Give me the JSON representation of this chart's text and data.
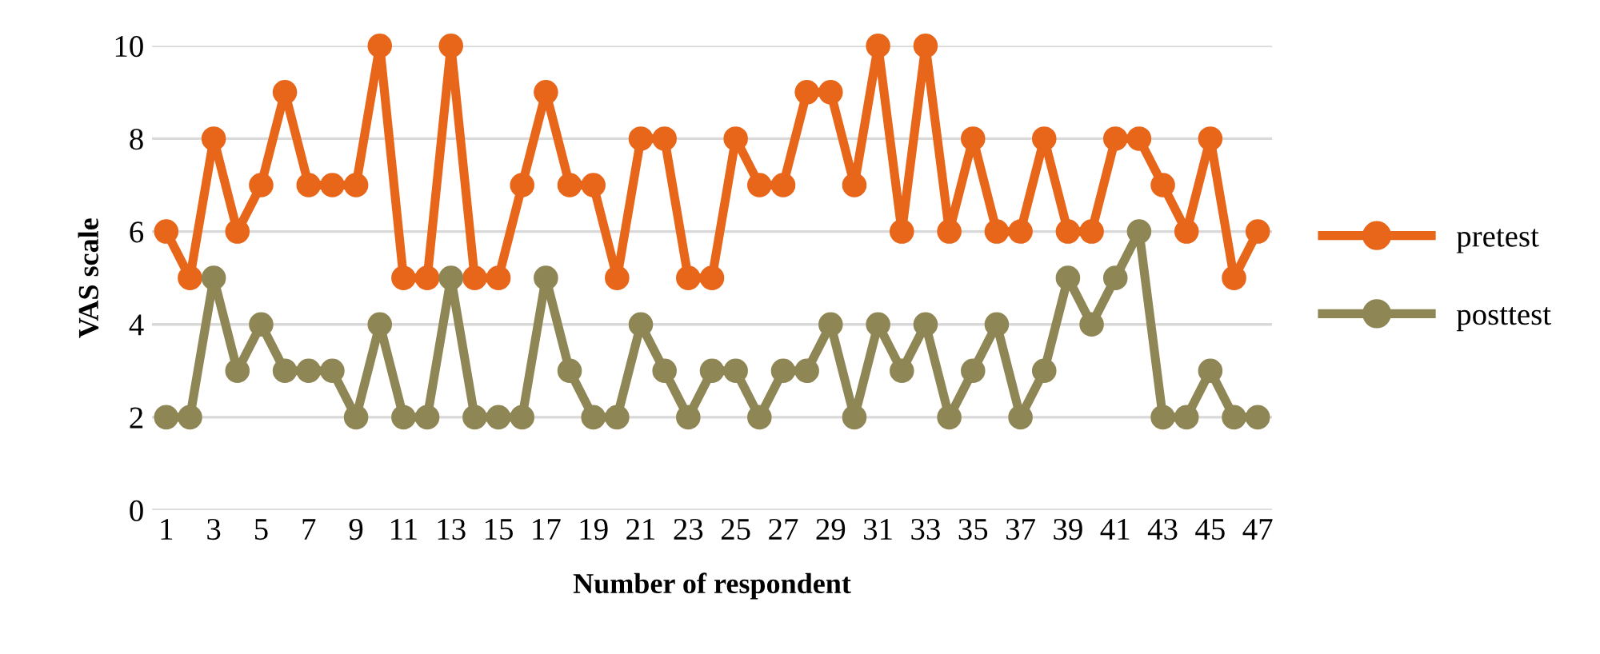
{
  "chart_data": {
    "type": "line",
    "xlabel": "Number of respondent",
    "ylabel": "VAS scale",
    "categories": [
      "1",
      null,
      "3",
      null,
      "5",
      null,
      "7",
      null,
      "9",
      null,
      "11",
      null,
      "13",
      null,
      "15",
      null,
      "17",
      null,
      "19",
      null,
      "21",
      null,
      "23",
      null,
      "25",
      null,
      "27",
      null,
      "29",
      null,
      "31",
      null,
      "33",
      null,
      "35",
      null,
      "37",
      null,
      "39",
      null,
      "41",
      null,
      "43",
      null,
      "45",
      null,
      "47"
    ],
    "series": [
      {
        "name": "pretest",
        "color": "#e8661a",
        "values": [
          6,
          5,
          8,
          6,
          7,
          9,
          7,
          7,
          7,
          10,
          5,
          5,
          10,
          5,
          5,
          7,
          9,
          7,
          7,
          5,
          8,
          8,
          5,
          5,
          8,
          7,
          7,
          9,
          9,
          7,
          10,
          6,
          10,
          6,
          8,
          6,
          6,
          8,
          6,
          6,
          8,
          8,
          7,
          6,
          8,
          5,
          6
        ]
      },
      {
        "name": "posttest",
        "color": "#8f8655",
        "values": [
          2,
          2,
          5,
          3,
          4,
          3,
          3,
          3,
          2,
          4,
          2,
          2,
          5,
          2,
          2,
          2,
          5,
          3,
          2,
          2,
          4,
          3,
          2,
          3,
          3,
          2,
          3,
          3,
          4,
          2,
          4,
          3,
          4,
          2,
          3,
          4,
          2,
          3,
          5,
          4,
          5,
          6,
          2,
          2,
          3,
          2,
          2
        ]
      }
    ],
    "ylim": [
      0,
      10
    ],
    "yticks": [
      0,
      2,
      4,
      6,
      8,
      10
    ],
    "grid": "y",
    "legend": "right",
    "marker": "circle",
    "line_style": "solid"
  }
}
